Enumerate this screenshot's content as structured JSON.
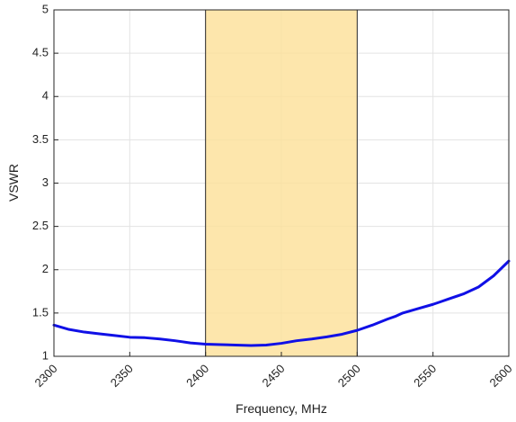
{
  "chart_data": {
    "type": "line",
    "title": "",
    "xlabel": "Frequency, MHz",
    "ylabel": "VSWR",
    "xlim": [
      2300,
      2600
    ],
    "ylim": [
      1,
      5
    ],
    "x_ticks": [
      2300,
      2350,
      2400,
      2450,
      2500,
      2550,
      2600
    ],
    "x_tick_labels": [
      "2300",
      "2350",
      "2400",
      "2450",
      "2500",
      "2550",
      "2600"
    ],
    "y_ticks": [
      1,
      1.5,
      2,
      2.5,
      3,
      3.5,
      4,
      4.5,
      5
    ],
    "y_tick_labels": [
      "1",
      "1.5",
      "2",
      "2.5",
      "3",
      "3.5",
      "4",
      "4.5",
      "5"
    ],
    "grid": true,
    "highlight_band": {
      "x": [
        2400,
        2500
      ],
      "color": "#fde09a"
    },
    "series": [
      {
        "color": "#1010e6",
        "x": [
          2300,
          2310,
          2320,
          2330,
          2340,
          2350,
          2360,
          2370,
          2380,
          2390,
          2400,
          2410,
          2420,
          2430,
          2440,
          2450,
          2460,
          2470,
          2480,
          2490,
          2500,
          2510,
          2520,
          2525,
          2530,
          2540,
          2550,
          2555,
          2560,
          2570,
          2580,
          2590,
          2600
        ],
        "y": [
          1.36,
          1.31,
          1.28,
          1.26,
          1.24,
          1.22,
          1.215,
          1.2,
          1.18,
          1.155,
          1.14,
          1.135,
          1.13,
          1.125,
          1.13,
          1.15,
          1.18,
          1.2,
          1.225,
          1.255,
          1.3,
          1.36,
          1.43,
          1.46,
          1.5,
          1.55,
          1.6,
          1.63,
          1.66,
          1.72,
          1.8,
          1.93,
          2.1
        ]
      }
    ]
  }
}
